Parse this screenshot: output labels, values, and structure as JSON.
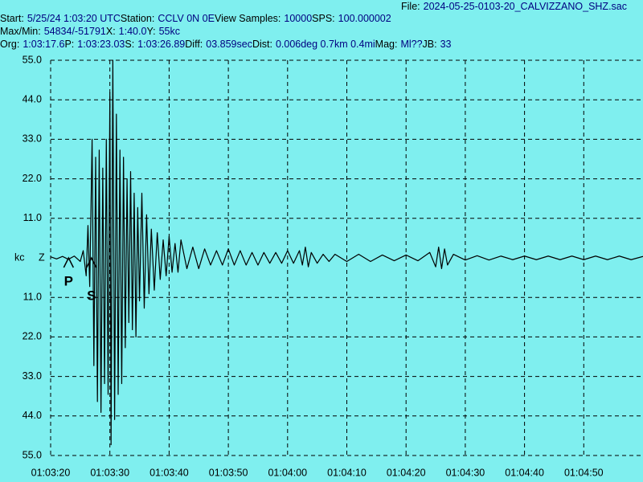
{
  "header": {
    "file": {
      "label": "File:",
      "value": "2024-05-25-0103-20_CALVIZZANO_SHZ.sac"
    },
    "lines": [
      [
        {
          "label": "Start:",
          "value": "5/25/24  1:03:20 UTC"
        },
        {
          "label": "Station:",
          "value": "CCLV 0N 0E"
        },
        {
          "label": "View Samples:",
          "value": "10000"
        },
        {
          "label": "SPS:",
          "value": "100.000002"
        }
      ],
      [
        {
          "label": "Max/Min:",
          "value": "54834/-51791"
        },
        {
          "label": "X:",
          "value": "1:40.0"
        },
        {
          "label": "Y:",
          "value": "55kc"
        }
      ],
      [
        {
          "label": "Org:",
          "value": "1:03:17.6"
        },
        {
          "label": "P:",
          "value": "1:03:23.03"
        },
        {
          "label": "S:",
          "value": "1:03:26.89"
        },
        {
          "label": "Diff:",
          "value": "03.859sec"
        },
        {
          "label": "Dist:",
          "value": "0.006deg 0.7km 0.4mi"
        },
        {
          "label": "Mag:",
          "value": "Ml??"
        },
        {
          "label": "JB:",
          "value": "33"
        }
      ]
    ]
  },
  "chart_data": {
    "type": "line",
    "color": "#000000",
    "grid": true,
    "y_label": "kc",
    "channel": "Z",
    "xlim": [
      0,
      100
    ],
    "ylim": [
      -55,
      55
    ],
    "xticks": [
      {
        "value": 0,
        "label": "01:03:20"
      },
      {
        "value": 10,
        "label": "01:03:30"
      },
      {
        "value": 20,
        "label": "01:03:40"
      },
      {
        "value": 30,
        "label": "01:03:50"
      },
      {
        "value": 40,
        "label": "01:04:00"
      },
      {
        "value": 50,
        "label": "01:04:10"
      },
      {
        "value": 60,
        "label": "01:04:20"
      },
      {
        "value": 70,
        "label": "01:04:30"
      },
      {
        "value": 80,
        "label": "01:04:40"
      },
      {
        "value": 90,
        "label": "01:04:50"
      }
    ],
    "yticks": [
      {
        "value": 55,
        "label": "55.0"
      },
      {
        "value": 44,
        "label": "44.0"
      },
      {
        "value": 33,
        "label": "33.0"
      },
      {
        "value": 22,
        "label": "22.0"
      },
      {
        "value": 11,
        "label": "11.0"
      },
      {
        "value": -11,
        "label": "11.0"
      },
      {
        "value": -22,
        "label": "22.0"
      },
      {
        "value": -33,
        "label": "33.0"
      },
      {
        "value": -44,
        "label": "44.0"
      },
      {
        "value": -55,
        "label": "55.0"
      }
    ],
    "picks": [
      {
        "label": "P",
        "x": 3.03
      },
      {
        "label": "S",
        "x": 6.89
      }
    ],
    "x": [
      0,
      1,
      2,
      3,
      4,
      5,
      5.5,
      6,
      6.3,
      6.6,
      7,
      7.3,
      7.6,
      7.9,
      8.2,
      8.5,
      8.8,
      9.1,
      9.4,
      9.7,
      10,
      10.2,
      10.5,
      10.8,
      11.1,
      11.4,
      11.7,
      12,
      12.3,
      12.6,
      12.9,
      13.2,
      13.5,
      13.8,
      14.1,
      14.4,
      14.7,
      15,
      15.4,
      15.8,
      16.2,
      16.6,
      17,
      17.5,
      18,
      18.5,
      19,
      19.5,
      20,
      20.5,
      21,
      21.5,
      22,
      23,
      24,
      25,
      26,
      27,
      28,
      29,
      30,
      31,
      32,
      33,
      34,
      35,
      36,
      37,
      38,
      39,
      40,
      41,
      42,
      42.5,
      43,
      43.5,
      44,
      45,
      46,
      47,
      48,
      50,
      52,
      54,
      56,
      58,
      60,
      62,
      64,
      65,
      65.5,
      66,
      66.5,
      67,
      68,
      70,
      72,
      74,
      76,
      78,
      80,
      82,
      84,
      86,
      88,
      90,
      92,
      94,
      96,
      98,
      100
    ],
    "values": [
      0.3,
      -0.3,
      0.4,
      -0.4,
      0.5,
      -1,
      2,
      -5,
      9,
      -8,
      33,
      -30,
      28,
      -40,
      30,
      -43,
      25,
      -35,
      33,
      -38,
      46,
      -52,
      55,
      -45,
      40,
      -38,
      30,
      -35,
      28,
      -25,
      22,
      -18,
      24,
      -20,
      18,
      -22,
      14,
      -12,
      18,
      -14,
      12,
      -10,
      8,
      -9,
      7,
      -6,
      5,
      -5,
      6,
      -4,
      4,
      -4,
      5,
      -3,
      3,
      -3,
      2.5,
      -2,
      2,
      -2,
      2.5,
      -2,
      2,
      -2,
      1.5,
      -2,
      1.5,
      -1.5,
      1.5,
      -1.5,
      2,
      -1.5,
      2,
      -2,
      3,
      -2.5,
      1.5,
      -1.5,
      1,
      -1,
      1,
      -1,
      1,
      -1,
      0.8,
      -0.8,
      0.8,
      -0.8,
      1.5,
      -2.5,
      3,
      -3,
      2.5,
      -2,
      1,
      -0.6,
      0.6,
      -0.6,
      0.5,
      -0.5,
      0.5,
      -0.5,
      0.5,
      -0.5,
      0.5,
      -0.5,
      0.5,
      -0.5,
      0.5,
      -0.5,
      0.4
    ]
  }
}
